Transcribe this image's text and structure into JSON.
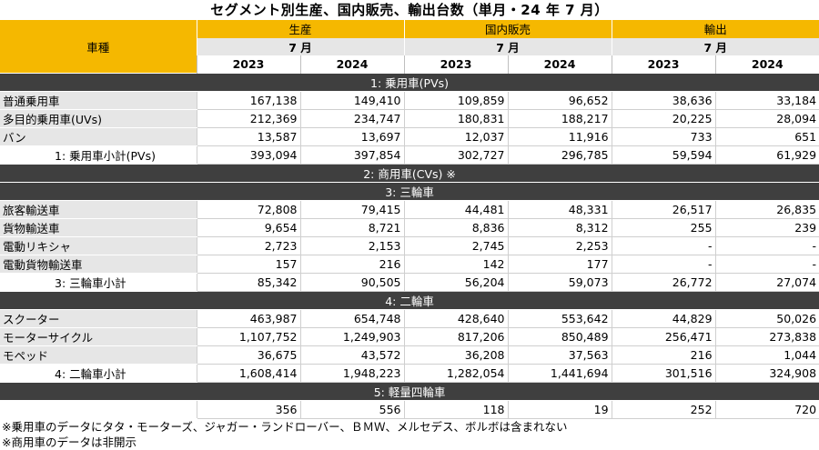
{
  "title": "セグメント別生産、国内販売、輸出台数（単月・24 年 7 月）",
  "header": {
    "vehicle_type": "車種",
    "groups": [
      "生産",
      "国内販売",
      "輸出"
    ],
    "month": "7 月",
    "years": [
      "2023",
      "2024"
    ]
  },
  "sections": [
    {
      "title": "1: 乗用車(PVs)",
      "rows": [
        {
          "label": "普通乗用車",
          "values": [
            "167,138",
            "149,410",
            "109,859",
            "96,652",
            "38,636",
            "33,184"
          ]
        },
        {
          "label": "多目的乗用車(UVs)",
          "values": [
            "212,369",
            "234,747",
            "180,831",
            "188,217",
            "20,225",
            "28,094"
          ]
        },
        {
          "label": "バン",
          "values": [
            "13,587",
            "13,697",
            "12,037",
            "11,916",
            "733",
            "651"
          ]
        }
      ],
      "subtotal": {
        "label": "1: 乗用車小計(PVs)",
        "values": [
          "393,094",
          "397,854",
          "302,727",
          "296,785",
          "59,594",
          "61,929"
        ]
      }
    },
    {
      "title": "2: 商用車(CVs) ※",
      "rows": []
    },
    {
      "title": "3: 三輪車",
      "rows": [
        {
          "label": "旅客輸送車",
          "values": [
            "72,808",
            "79,415",
            "44,481",
            "48,331",
            "26,517",
            "26,835"
          ]
        },
        {
          "label": "貨物輸送車",
          "values": [
            "9,654",
            "8,721",
            "8,836",
            "8,312",
            "255",
            "239"
          ]
        },
        {
          "label": "電動リキシャ",
          "values": [
            "2,723",
            "2,153",
            "2,745",
            "2,253",
            "-",
            "-"
          ]
        },
        {
          "label": "電動貨物輸送車",
          "values": [
            "157",
            "216",
            "142",
            "177",
            "-",
            "-"
          ]
        }
      ],
      "subtotal": {
        "label": "3: 三輪車小計",
        "values": [
          "85,342",
          "90,505",
          "56,204",
          "59,073",
          "26,772",
          "27,074"
        ]
      }
    },
    {
      "title": "4: 二輪車",
      "rows": [
        {
          "label": "スクーター",
          "values": [
            "463,987",
            "654,748",
            "428,640",
            "553,642",
            "44,829",
            "50,026"
          ]
        },
        {
          "label": "モーターサイクル",
          "values": [
            "1,107,752",
            "1,249,903",
            "817,206",
            "850,489",
            "256,471",
            "273,838"
          ]
        },
        {
          "label": "モペッド",
          "values": [
            "36,675",
            "43,572",
            "36,208",
            "37,563",
            "216",
            "1,044"
          ]
        }
      ],
      "subtotal": {
        "label": "4: 二輪車小計",
        "values": [
          "1,608,414",
          "1,948,223",
          "1,282,054",
          "1,441,694",
          "301,516",
          "324,908"
        ]
      }
    },
    {
      "title": "5: 軽量四輪車",
      "rows": [
        {
          "label": "",
          "values": [
            "356",
            "556",
            "118",
            "19",
            "252",
            "720"
          ]
        }
      ]
    }
  ],
  "notes": [
    "※乗用車のデータにタタ・モーターズ、ジャガー・ランドローバー、ＢＭＷ、メルセデス、ボルボは含まれない",
    "※商用車のデータは非開示"
  ]
}
